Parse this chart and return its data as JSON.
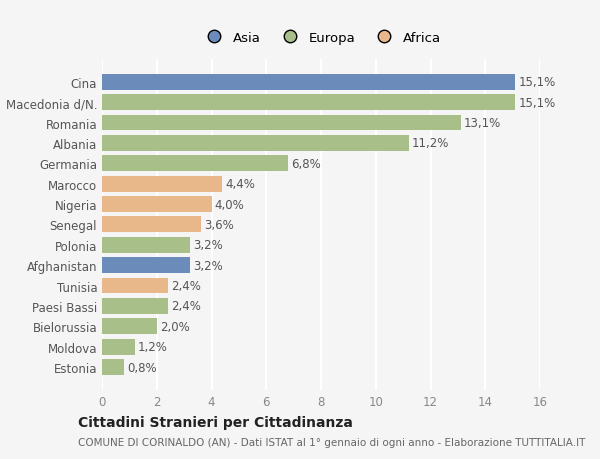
{
  "categories": [
    "Estonia",
    "Moldova",
    "Bielorussia",
    "Paesi Bassi",
    "Tunisia",
    "Afghanistan",
    "Polonia",
    "Senegal",
    "Nigeria",
    "Marocco",
    "Germania",
    "Albania",
    "Romania",
    "Macedonia d/N.",
    "Cina"
  ],
  "values": [
    0.8,
    1.2,
    2.0,
    2.4,
    2.4,
    3.2,
    3.2,
    3.6,
    4.0,
    4.4,
    6.8,
    11.2,
    13.1,
    15.1,
    15.1
  ],
  "labels": [
    "0,8%",
    "1,2%",
    "2,0%",
    "2,4%",
    "2,4%",
    "3,2%",
    "3,2%",
    "3,6%",
    "4,0%",
    "4,4%",
    "6,8%",
    "11,2%",
    "13,1%",
    "15,1%",
    "15,1%"
  ],
  "continents": [
    "Europa",
    "Europa",
    "Europa",
    "Europa",
    "Africa",
    "Asia",
    "Europa",
    "Africa",
    "Africa",
    "Africa",
    "Europa",
    "Europa",
    "Europa",
    "Europa",
    "Asia"
  ],
  "colors": {
    "Asia": "#6b8cba",
    "Europa": "#a8bf8a",
    "Africa": "#e8b88a"
  },
  "title": "Cittadini Stranieri per Cittadinanza",
  "subtitle": "COMUNE DI CORINALDO (AN) - Dati ISTAT al 1° gennaio di ogni anno - Elaborazione TUTTITALIA.IT",
  "xlim": [
    0,
    16
  ],
  "xticks": [
    0,
    2,
    4,
    6,
    8,
    10,
    12,
    14,
    16
  ],
  "background_color": "#f5f5f5",
  "grid_color": "#ffffff",
  "bar_height": 0.78,
  "label_fontsize": 8.5,
  "tick_fontsize": 8.5,
  "title_fontsize": 10,
  "subtitle_fontsize": 7.5
}
